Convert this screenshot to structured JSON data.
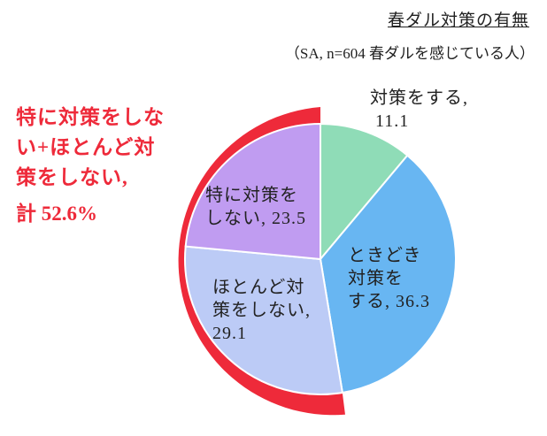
{
  "chart_data": {
    "type": "pie",
    "title": "春ダル対策の有無",
    "subtitle": "（SA, n=604 春ダルを感じている人）",
    "categories": [
      "対策をする,",
      "ときどき\n対策を\nする,",
      "ほとんど対\n策をしない,\n",
      "特に対策を\nしない,"
    ],
    "values": [
      11.1,
      36.3,
      29.1,
      23.5
    ],
    "colors": [
      "#8fdcb7",
      "#68b6f2",
      "#bccbf6",
      "#c09cf1"
    ],
    "annotation": {
      "text": "特に対策をしな\nい+ほとんど対\n策をしない,",
      "total": "計 52.6%",
      "color": "#ee2a3a"
    }
  }
}
